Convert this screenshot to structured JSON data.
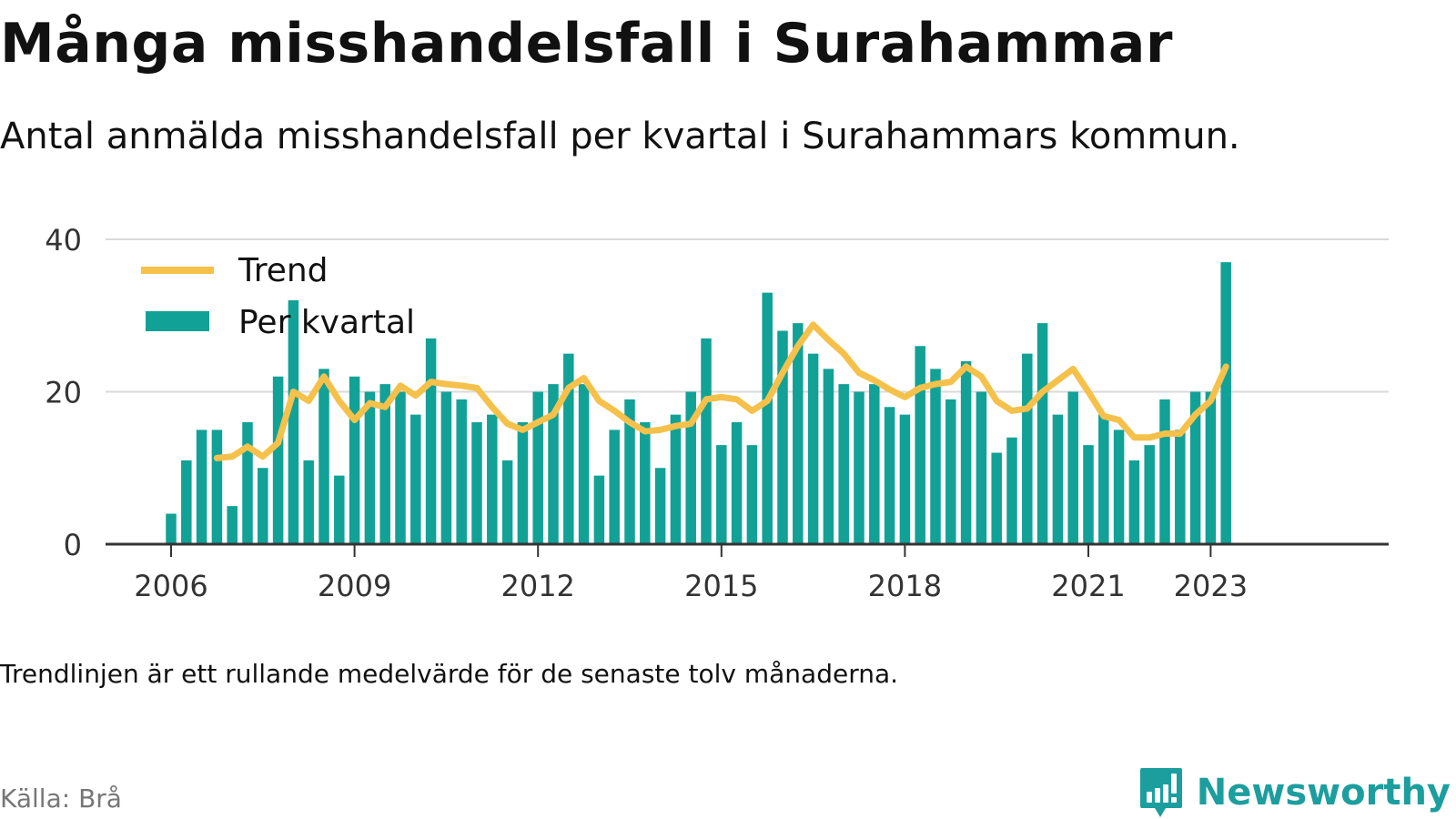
{
  "title": "Många misshandelsfall i Surahammar",
  "subtitle": "Antal anmälda misshandelsfall per kvartal i Surahammars kommun.",
  "note": "Trendlinjen är ett rullande medelvärde för de senaste tolv månaderna.",
  "source": "Källa: Brå",
  "brand": {
    "name": "Newsworthy",
    "logo_icon": "bar-chart-speech-bubble-icon"
  },
  "colors": {
    "bars": "#12a196",
    "trend": "#f5c14b",
    "axis": "#333333",
    "gridline": "#d9d9d9",
    "brand": "#1d9e9e"
  },
  "chart_data": {
    "type": "bar",
    "title": "Många misshandelsfall i Surahammar",
    "subtitle": "Antal anmälda misshandelsfall per kvartal i Surahammars kommun.",
    "xlabel": "",
    "ylabel": "",
    "ylim": [
      0,
      40
    ],
    "yticks": [
      0,
      20,
      40
    ],
    "xticks": [
      "2006",
      "2009",
      "2012",
      "2015",
      "2018",
      "2021",
      "2023"
    ],
    "x_first": "2006 Q1",
    "x_last": "2023 Q2",
    "grid": true,
    "legend_position": "top-left",
    "categories": [
      "2006 Q1",
      "2006 Q2",
      "2006 Q3",
      "2006 Q4",
      "2007 Q1",
      "2007 Q2",
      "2007 Q3",
      "2007 Q4",
      "2008 Q1",
      "2008 Q2",
      "2008 Q3",
      "2008 Q4",
      "2009 Q1",
      "2009 Q2",
      "2009 Q3",
      "2009 Q4",
      "2010 Q1",
      "2010 Q2",
      "2010 Q3",
      "2010 Q4",
      "2011 Q1",
      "2011 Q2",
      "2011 Q3",
      "2011 Q4",
      "2012 Q1",
      "2012 Q2",
      "2012 Q3",
      "2012 Q4",
      "2013 Q1",
      "2013 Q2",
      "2013 Q3",
      "2013 Q4",
      "2014 Q1",
      "2014 Q2",
      "2014 Q3",
      "2014 Q4",
      "2015 Q1",
      "2015 Q2",
      "2015 Q3",
      "2015 Q4",
      "2016 Q1",
      "2016 Q2",
      "2016 Q3",
      "2016 Q4",
      "2017 Q1",
      "2017 Q2",
      "2017 Q3",
      "2017 Q4",
      "2018 Q1",
      "2018 Q2",
      "2018 Q3",
      "2018 Q4",
      "2019 Q1",
      "2019 Q2",
      "2019 Q3",
      "2019 Q4",
      "2020 Q1",
      "2020 Q2",
      "2020 Q3",
      "2020 Q4",
      "2021 Q1",
      "2021 Q2",
      "2021 Q3",
      "2021 Q4",
      "2022 Q1",
      "2022 Q2",
      "2022 Q3",
      "2022 Q4",
      "2023 Q1",
      "2023 Q2"
    ],
    "series": [
      {
        "name": "Per kvartal",
        "type": "bar",
        "values": [
          4,
          11,
          15,
          15,
          5,
          16,
          10,
          22,
          32,
          11,
          23,
          9,
          22,
          20,
          21,
          20,
          17,
          27,
          20,
          19,
          16,
          17,
          11,
          16,
          20,
          21,
          25,
          21,
          9,
          15,
          19,
          16,
          10,
          17,
          20,
          27,
          13,
          16,
          13,
          33,
          28,
          29,
          25,
          23,
          21,
          20,
          21,
          18,
          17,
          26,
          23,
          19,
          24,
          20,
          12,
          14,
          25,
          29,
          17,
          20,
          13,
          17,
          15,
          11,
          13,
          19,
          15,
          20,
          20,
          37
        ]
      },
      {
        "name": "Trend",
        "type": "line",
        "values": [
          null,
          null,
          null,
          11.3,
          11.5,
          12.8,
          11.5,
          13.3,
          20.0,
          18.8,
          22.0,
          18.8,
          16.3,
          18.5,
          18.0,
          20.8,
          19.5,
          21.3,
          21.0,
          20.8,
          20.5,
          18.0,
          15.8,
          15.0,
          16.0,
          17.0,
          20.5,
          21.8,
          18.8,
          17.5,
          16.0,
          14.8,
          15.0,
          15.5,
          15.8,
          19.0,
          19.3,
          19.0,
          17.5,
          18.8,
          22.5,
          26.0,
          28.8,
          26.8,
          25.0,
          22.5,
          21.5,
          20.3,
          19.3,
          20.5,
          21.0,
          21.3,
          23.3,
          22.0,
          18.8,
          17.5,
          17.8,
          20.0,
          21.5,
          23.0,
          20.0,
          16.8,
          16.3,
          14.0,
          14.0,
          14.5,
          14.5,
          17.0,
          18.8,
          23.3
        ]
      }
    ]
  }
}
